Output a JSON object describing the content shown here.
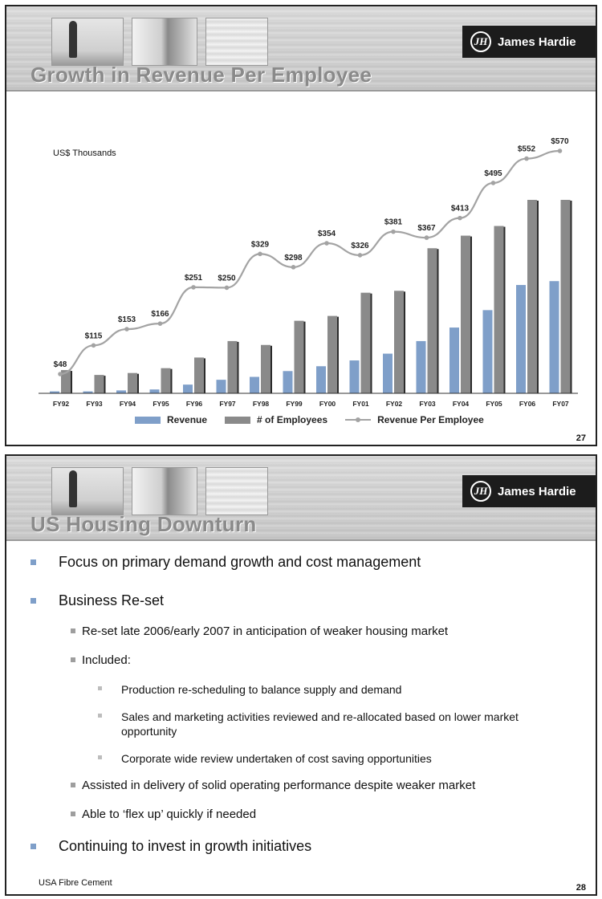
{
  "brand": {
    "name": "James Hardie",
    "mark": "JH"
  },
  "colors": {
    "revenue": "#7f9fc9",
    "employees": "#8a8a8a",
    "rpe": "#a3a3a3",
    "title": "#8a8a8a"
  },
  "slide1": {
    "title": "Growth in Revenue Per Employee",
    "page": "27",
    "unit_label": "US$ Thousands",
    "legend": {
      "revenue": "Revenue",
      "employees": "# of Employees",
      "rpe": "Revenue Per Employee"
    }
  },
  "chart_data": {
    "type": "bar",
    "title": "Growth in Revenue Per Employee",
    "ylabel": "US$ Thousands",
    "categories": [
      "FY92",
      "FY93",
      "FY94",
      "FY95",
      "FY96",
      "FY97",
      "FY98",
      "FY99",
      "FY00",
      "FY01",
      "FY02",
      "FY03",
      "FY04",
      "FY05",
      "FY06",
      "FY07"
    ],
    "series": [
      {
        "name": "Revenue",
        "kind": "bar",
        "values_relative": [
          0.01,
          0.01,
          0.015,
          0.02,
          0.045,
          0.07,
          0.085,
          0.115,
          0.14,
          0.17,
          0.205,
          0.27,
          0.34,
          0.43,
          0.56,
          0.58
        ]
      },
      {
        "name": "# of Employees",
        "kind": "bar",
        "values_relative": [
          0.12,
          0.095,
          0.105,
          0.13,
          0.185,
          0.27,
          0.25,
          0.375,
          0.4,
          0.52,
          0.53,
          0.75,
          0.815,
          0.865,
          1.0,
          1.0
        ]
      },
      {
        "name": "Revenue Per Employee",
        "kind": "line",
        "values": [
          48,
          115,
          153,
          166,
          251,
          250,
          329,
          298,
          354,
          326,
          381,
          367,
          413,
          495,
          552,
          570
        ],
        "labels": [
          "$48",
          "$115",
          "$153",
          "$166",
          "$251",
          "$250",
          "$329",
          "$298",
          "$354",
          "$326",
          "$381",
          "$367",
          "$413",
          "$495",
          "$552",
          "$570"
        ]
      }
    ],
    "legend_position": "bottom",
    "grid": false
  },
  "slide2": {
    "title": "US Housing Downturn",
    "page": "28",
    "footer": "USA Fibre Cement",
    "bullets": {
      "b1": "Focus on primary demand growth and cost management",
      "b2": "Business Re-set",
      "b2_1": "Re-set late 2006/early 2007 in anticipation of weaker housing market",
      "b2_2": "Included:",
      "b2_2_1": "Production re-scheduling to balance supply and demand",
      "b2_2_2": "Sales and marketing activities reviewed and re-allocated based on lower market opportunity",
      "b2_2_3": "Corporate wide review undertaken of cost saving opportunities",
      "b2_3": "Assisted in delivery of solid operating performance despite weaker market",
      "b2_4": "Able to ‘flex up’ quickly if needed",
      "b3": "Continuing to invest in growth initiatives"
    }
  }
}
